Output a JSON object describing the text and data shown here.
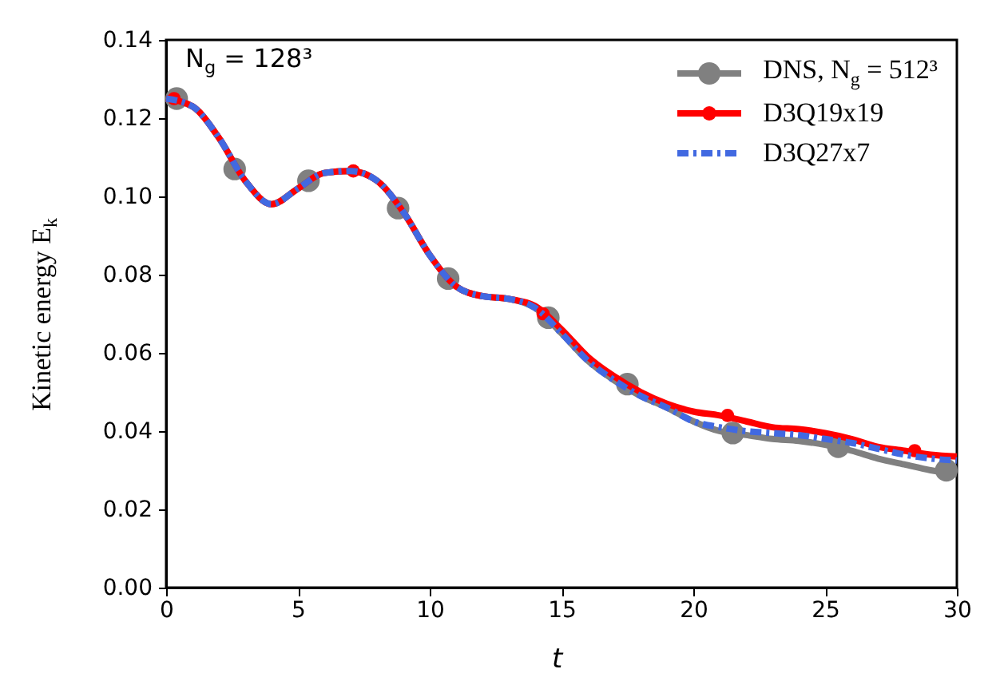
{
  "chart_data": {
    "type": "line",
    "xlabel": "t",
    "ylabel": "Kinetic energy E$_{k}$",
    "annotations": [
      "N$_{g}$ = 128³"
    ],
    "xlim": [
      0,
      30
    ],
    "xticks": [
      0,
      5,
      10,
      15,
      20,
      25,
      30
    ],
    "ylim": [
      0,
      0.14
    ],
    "yticks": [
      {
        "value": 0,
        "label": "0.00"
      },
      {
        "value": 0.02,
        "label": "0.02"
      },
      {
        "value": 0.04,
        "label": "0.04"
      },
      {
        "value": 0.06,
        "label": "0.06"
      },
      {
        "value": 0.08,
        "label": "0.08"
      },
      {
        "value": 0.1,
        "label": "0.10"
      },
      {
        "value": 0.12,
        "label": "0.12"
      },
      {
        "value": 0.14,
        "label": "0.14"
      }
    ],
    "legend": "top right",
    "grid": false,
    "series": [
      {
        "name": "DNS, N$_{g}$ = 512³",
        "color": "#808080",
        "line_style": "solid",
        "x": [
          0,
          1,
          2,
          3,
          4,
          5,
          6,
          7,
          8,
          9,
          10,
          11,
          12,
          13,
          14,
          15,
          16,
          17,
          18,
          19,
          20,
          21,
          22,
          23,
          24,
          25,
          26,
          27,
          28,
          29,
          30
        ],
        "values": [
          0.125,
          0.123,
          0.115,
          0.104,
          0.098,
          0.102,
          0.106,
          0.1065,
          0.104,
          0.096,
          0.085,
          0.077,
          0.0745,
          0.0738,
          0.0715,
          0.065,
          0.058,
          0.053,
          0.049,
          0.046,
          0.0425,
          0.04,
          0.039,
          0.038,
          0.0375,
          0.0365,
          0.035,
          0.033,
          0.0315,
          0.03,
          0.029
        ]
      },
      {
        "type": "scatter",
        "color": "#808080",
        "marker": "circle",
        "x": [
          0.4,
          2.6,
          5.4,
          8.8,
          10.7,
          14.5,
          17.5,
          21.5,
          25.5,
          29.6
        ],
        "values": [
          0.125,
          0.107,
          0.104,
          0.097,
          0.079,
          0.069,
          0.052,
          0.0395,
          0.036,
          0.03
        ]
      },
      {
        "name": "D3Q19x19",
        "color": "#ff0000",
        "line_style": "solid",
        "x": [
          0,
          1,
          2,
          3,
          4,
          5,
          6,
          7,
          8,
          9,
          10,
          11,
          12,
          13,
          14,
          15,
          16,
          17,
          18,
          19,
          20,
          21,
          22,
          23,
          24,
          25,
          26,
          27,
          28,
          29,
          30
        ],
        "values": [
          0.125,
          0.123,
          0.115,
          0.104,
          0.098,
          0.102,
          0.106,
          0.1065,
          0.104,
          0.096,
          0.085,
          0.077,
          0.0745,
          0.0738,
          0.072,
          0.066,
          0.059,
          0.054,
          0.05,
          0.047,
          0.045,
          0.044,
          0.0425,
          0.041,
          0.0405,
          0.0395,
          0.038,
          0.036,
          0.035,
          0.034,
          0.0335
        ]
      },
      {
        "type": "scatter",
        "color": "#ff0000",
        "marker": "circle",
        "x": [
          0.3,
          7.1,
          14.3,
          21.3,
          28.4
        ],
        "values": [
          0.125,
          0.1065,
          0.07,
          0.044,
          0.035
        ]
      },
      {
        "name": "D3Q27x7",
        "color": "#4169e1",
        "line_style": "dashed",
        "x": [
          0,
          1,
          2,
          3,
          4,
          5,
          6,
          7,
          8,
          9,
          10,
          11,
          12,
          13,
          14,
          15,
          16,
          17,
          18,
          19,
          20,
          21,
          22,
          23,
          24,
          25,
          26,
          27,
          28,
          29,
          30
        ],
        "values": [
          0.125,
          0.123,
          0.115,
          0.104,
          0.098,
          0.102,
          0.106,
          0.1065,
          0.104,
          0.096,
          0.085,
          0.077,
          0.0745,
          0.0738,
          0.0715,
          0.065,
          0.058,
          0.053,
          0.049,
          0.046,
          0.0425,
          0.041,
          0.04,
          0.0395,
          0.039,
          0.038,
          0.037,
          0.0355,
          0.034,
          0.033,
          0.0325
        ]
      }
    ]
  }
}
